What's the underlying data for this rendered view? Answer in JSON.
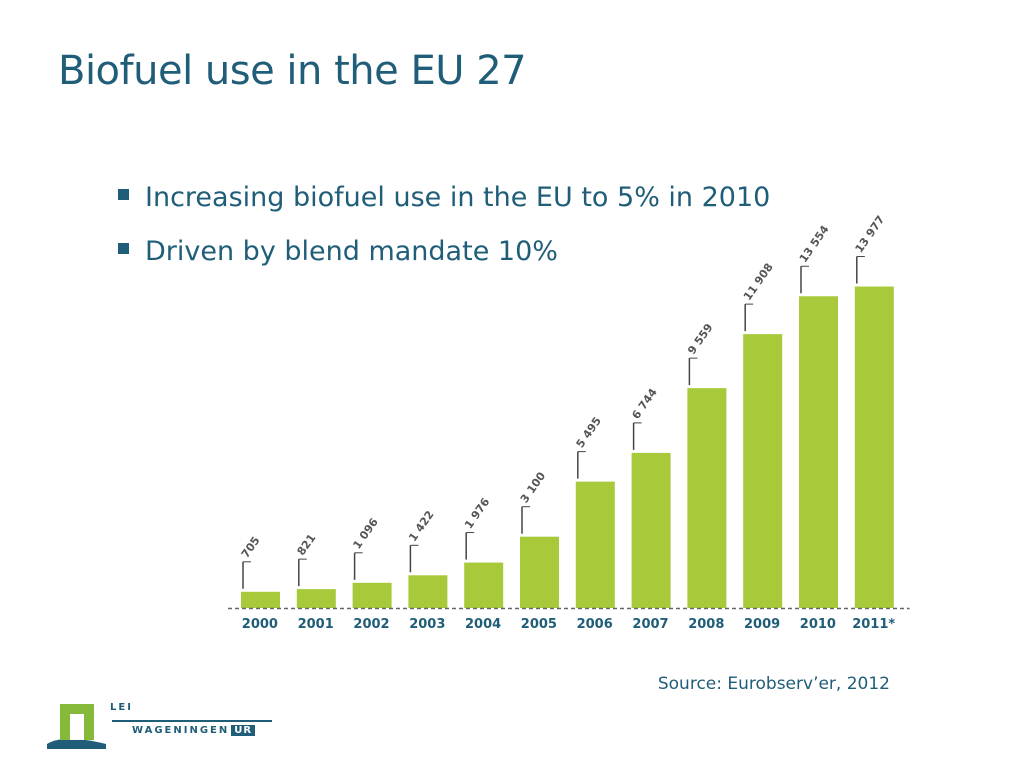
{
  "slide": {
    "title": "Biofuel use in the EU 27",
    "bullets": [
      "Increasing biofuel use in the EU to 5% in 2010",
      "Driven by blend mandate 10%"
    ],
    "source": "Source: Eurobserv’er, 2012"
  },
  "logo": {
    "org": "LEI",
    "name": "WAGENINGEN",
    "suffix": "UR"
  },
  "colors": {
    "title": "#1f5d78",
    "bar": "#a7c93a",
    "tick_label": "#1f5d78",
    "value_label": "#555555"
  },
  "chart_data": {
    "type": "bar",
    "categories": [
      "2000",
      "2001",
      "2002",
      "2003",
      "2004",
      "2005",
      "2006",
      "2007",
      "2008",
      "2009",
      "2010",
      "2011*"
    ],
    "values": [
      705,
      821,
      1096,
      1422,
      1976,
      3100,
      5495,
      6744,
      9559,
      11908,
      13554,
      13977
    ],
    "value_labels": [
      "705",
      "821",
      "1 096",
      "1 422",
      "1 976",
      "3 100",
      "5 495",
      "6 744",
      "9 559",
      "11 908",
      "13 554",
      "13 977"
    ],
    "title": "",
    "xlabel": "",
    "ylabel": "",
    "ylim": [
      0,
      14000
    ],
    "grid": false,
    "legend": "none"
  }
}
